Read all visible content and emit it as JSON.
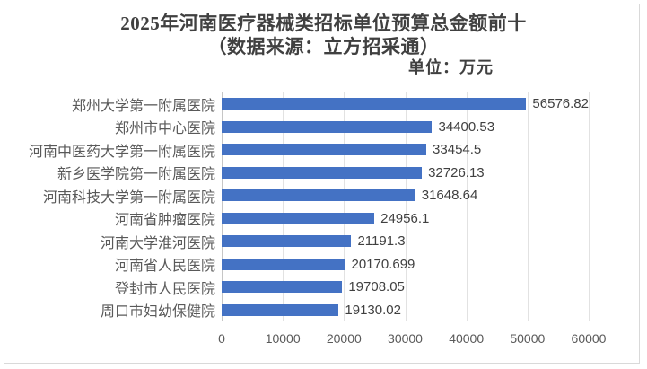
{
  "header": {
    "title_line1": "2025年河南医疗器械类招标单位预算总金额前十",
    "title_line2": "（数据来源：立方招采通）",
    "unit_label": "单位：万元"
  },
  "chart_data": {
    "type": "bar",
    "orientation": "horizontal",
    "title": "2025年河南医疗器械类招标单位预算总金额前十（数据来源：立方招采通）",
    "unit": "万元",
    "categories": [
      "郑州大学第一附属医院",
      "郑州市中心医院",
      "河南中医药大学第一附属医院",
      "新乡医学院第一附属医院",
      "河南科技大学第一附属医院",
      "河南省肿瘤医院",
      "河南大学淮河医院",
      "河南省人民医院",
      "登封市人民医院",
      "周口市妇幼保健院"
    ],
    "values": [
      56576.82,
      34400.53,
      33454.5,
      32726.13,
      31648.64,
      24956.1,
      21191.3,
      20170.699,
      19708.05,
      19130.02
    ],
    "value_labels": [
      "56576.82",
      "34400.53",
      "33454.5",
      "32726.13",
      "31648.64",
      "24956.1",
      "21191.3",
      "20170.699",
      "19708.05",
      "19130.02"
    ],
    "xlim": [
      0,
      60000
    ],
    "xticks": [
      0,
      10000,
      20000,
      30000,
      40000,
      50000,
      60000
    ],
    "xtick_labels": [
      "0",
      "10000",
      "20000",
      "30000",
      "40000",
      "50000",
      "60000"
    ],
    "grid": true,
    "legend": false,
    "data_labels_position": "outside-end"
  },
  "colors": {
    "bar": "#4472c4",
    "gridline": "#e2e2e2",
    "axis_line": "#c6c6c6",
    "frame_border": "#d9d9d9",
    "title_text": "#404040",
    "label_text": "#595959",
    "value_text": "#404040"
  }
}
